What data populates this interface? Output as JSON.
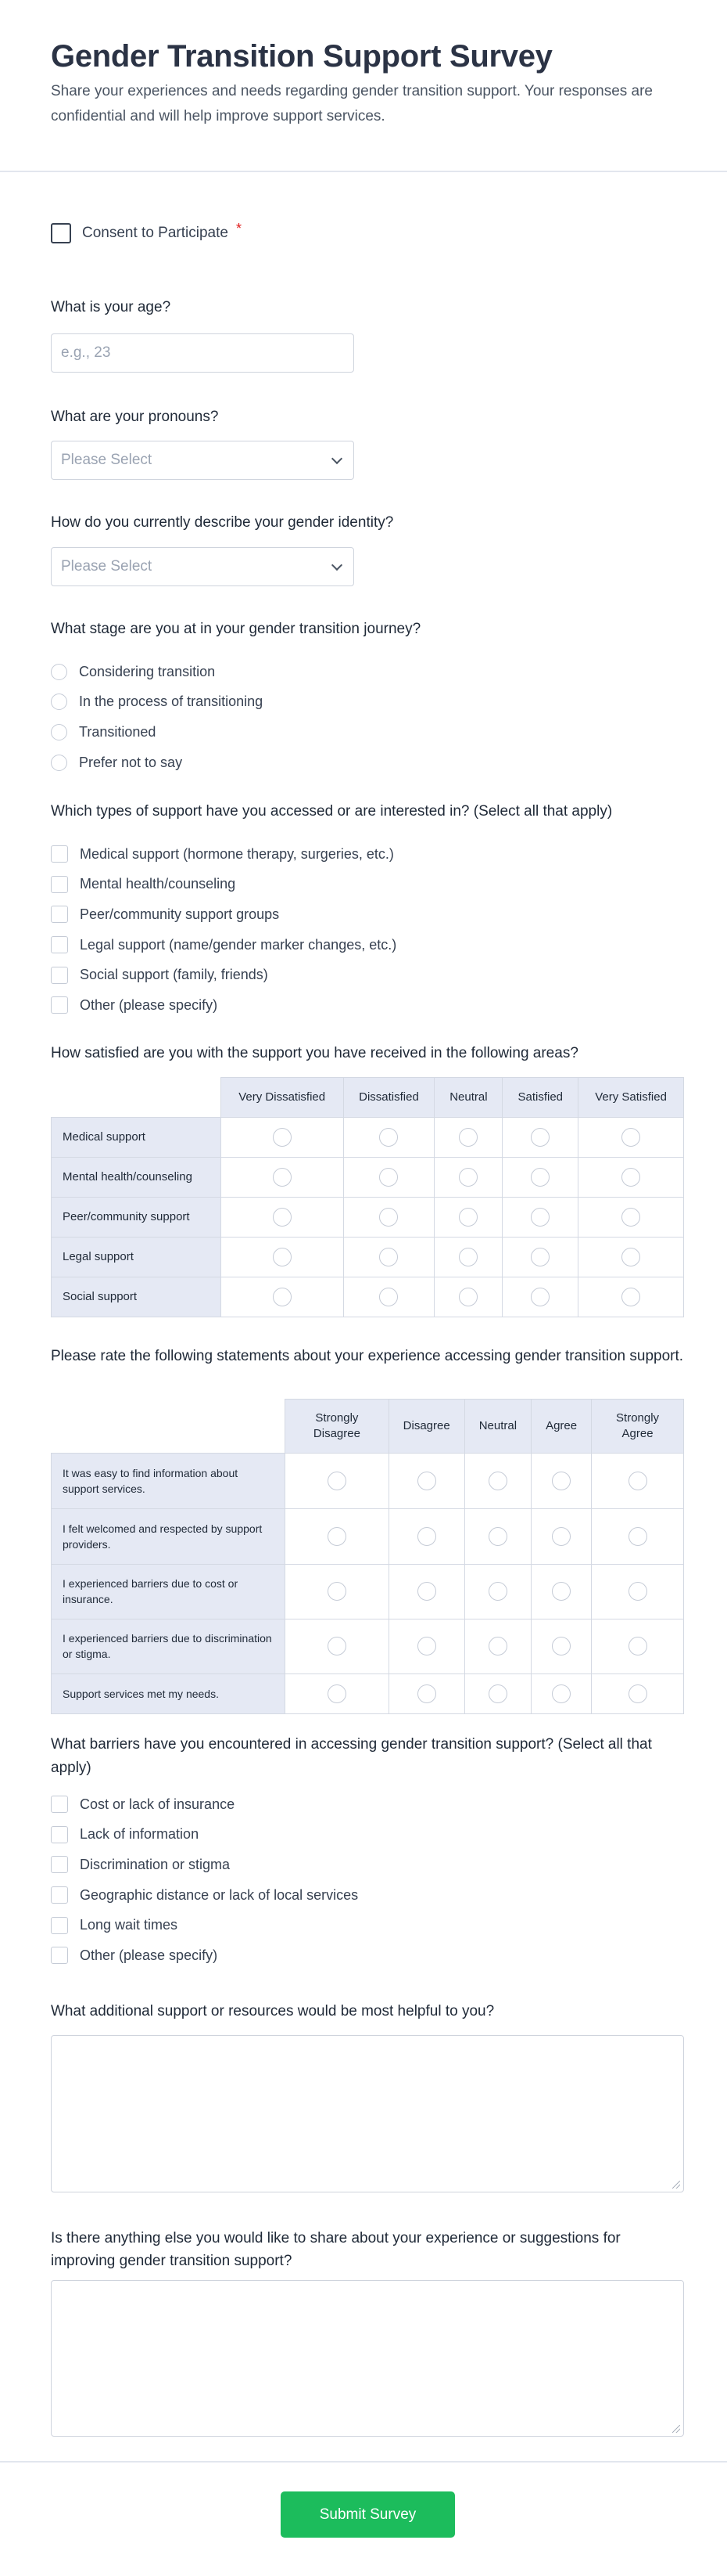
{
  "header": {
    "title": "Gender Transition Support Survey",
    "description": "Share your experiences and needs regarding gender transition support. Your responses are confidential and will help improve support services."
  },
  "consent": {
    "label": "Consent to Participate",
    "required_mark": "*"
  },
  "age": {
    "label": "What is your age?",
    "placeholder": "e.g., 23"
  },
  "pronouns": {
    "label": "What are your pronouns?",
    "selected": "Please Select"
  },
  "identity": {
    "label": "How do you currently describe your gender identity?",
    "selected": "Please Select"
  },
  "stage": {
    "label": "What stage are you at in your gender transition journey?",
    "options": [
      "Considering transition",
      "In the process of transitioning",
      "Transitioned",
      "Prefer not to say"
    ]
  },
  "support_types": {
    "label": "Which types of support have you accessed or are interested in? (Select all that apply)",
    "options": [
      "Medical support (hormone therapy, surgeries, etc.)",
      "Mental health/counseling",
      "Peer/community support groups",
      "Legal support (name/gender marker changes, etc.)",
      "Social support (family, friends)",
      "Other (please specify)"
    ]
  },
  "satisfaction": {
    "label": "How satisfied are you with the support you have received in the following areas?",
    "columns": [
      "Very Dissatisfied",
      "Dissatisfied",
      "Neutral",
      "Satisfied",
      "Very Satisfied"
    ],
    "rows": [
      "Medical support",
      "Mental health/counseling",
      "Peer/community support",
      "Legal support",
      "Social support"
    ]
  },
  "statements": {
    "label": "Please rate the following statements about your experience accessing gender transition support.",
    "columns": [
      "Strongly Disagree",
      "Disagree",
      "Neutral",
      "Agree",
      "Strongly Agree"
    ],
    "rows": [
      "It was easy to find information about support services.",
      "I felt welcomed and respected by support providers.",
      "I experienced barriers due to cost or insurance.",
      "I experienced barriers due to discrimination or stigma.",
      "Support services met my needs."
    ]
  },
  "barriers": {
    "label": "What barriers have you encountered in accessing gender transition support? (Select all that apply)",
    "options": [
      "Cost or lack of insurance",
      "Lack of information",
      "Discrimination or stigma",
      "Geographic distance or lack of local services",
      "Long wait times",
      "Other (please specify)"
    ]
  },
  "additional": {
    "label": "What additional support or resources would be most helpful to you?",
    "value": ""
  },
  "anything_else": {
    "label": "Is there anything else you would like to share about your experience or suggestions for improving gender transition support?",
    "value": ""
  },
  "submit_label": "Submit Survey",
  "colors": {
    "accent": "#1cbc5c",
    "required": "#e11d1d",
    "matrix_header": "#e5e9f4"
  }
}
